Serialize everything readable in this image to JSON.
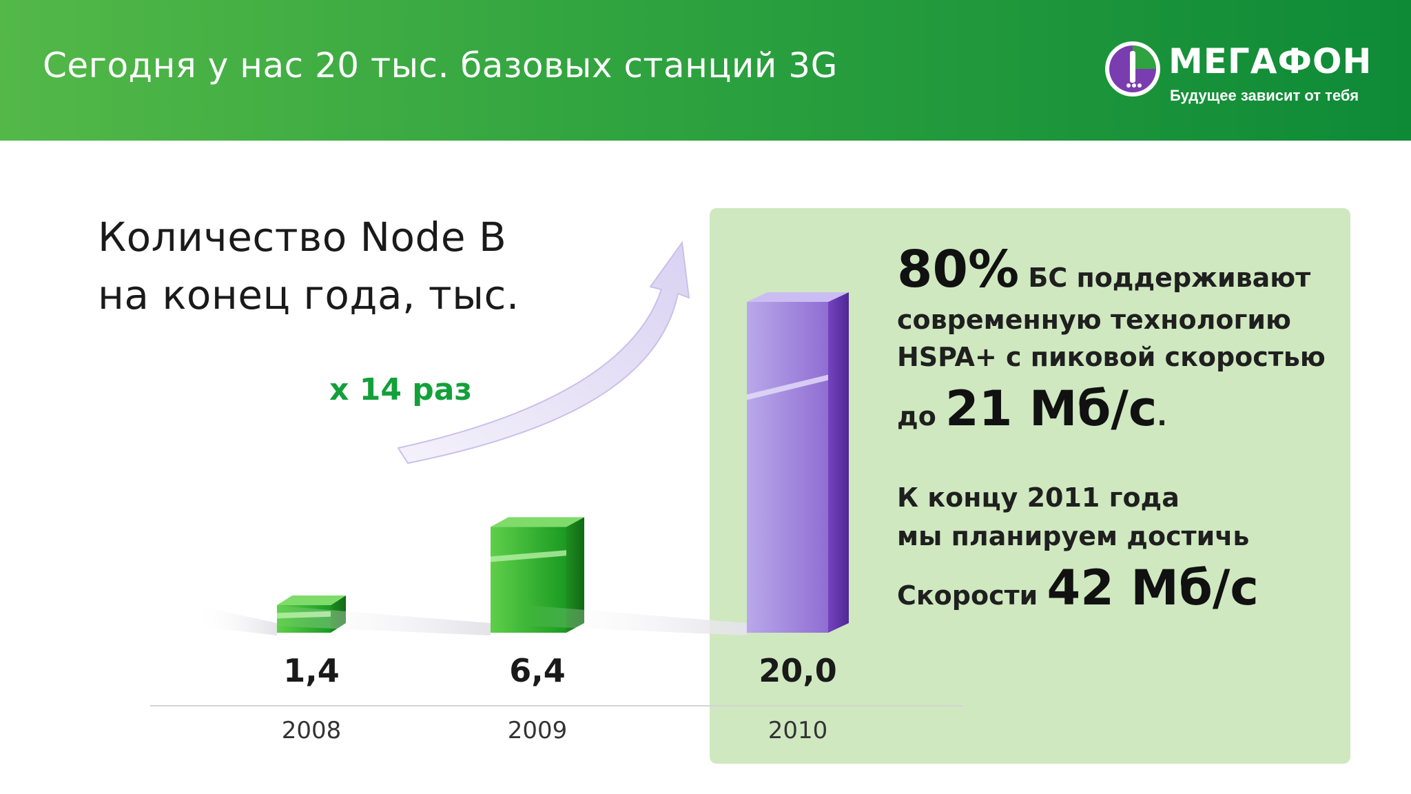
{
  "header": {
    "title": "Сегодня у нас 20 тыс. базовых станций 3G",
    "background_color": "#2fa33f",
    "logo": {
      "word": "МЕГАФОН",
      "tagline": "Будущее зависит от тебя"
    }
  },
  "chart_data": {
    "type": "bar",
    "title": "Количество Node B на конец года, тыс.",
    "categories": [
      "2008",
      "2009",
      "2010"
    ],
    "values": [
      1.4,
      6.4,
      20.0
    ],
    "value_labels": [
      "1,4",
      "6,4",
      "20,0"
    ],
    "ylim": [
      0,
      20
    ],
    "bar_colors": [
      "#22a52b",
      "#22a52b",
      "#7b4bc4"
    ],
    "annotation": "х 14 раз",
    "grid": false,
    "legend": false
  },
  "panel": {
    "background_color": "#cfe8c0",
    "line1_big": "80%",
    "line1_rest": "БС поддерживают",
    "line2": "современную технологию",
    "line3": "HSPA+ с пиковой скоростью",
    "line4_small": "до",
    "line4_big": "21 Мб/с",
    "line4_dot": ".",
    "line5": "К концу 2011 года",
    "line6": "мы планируем достичь",
    "line7_small": "Скорости",
    "line7_big": "42 Мб/с"
  }
}
